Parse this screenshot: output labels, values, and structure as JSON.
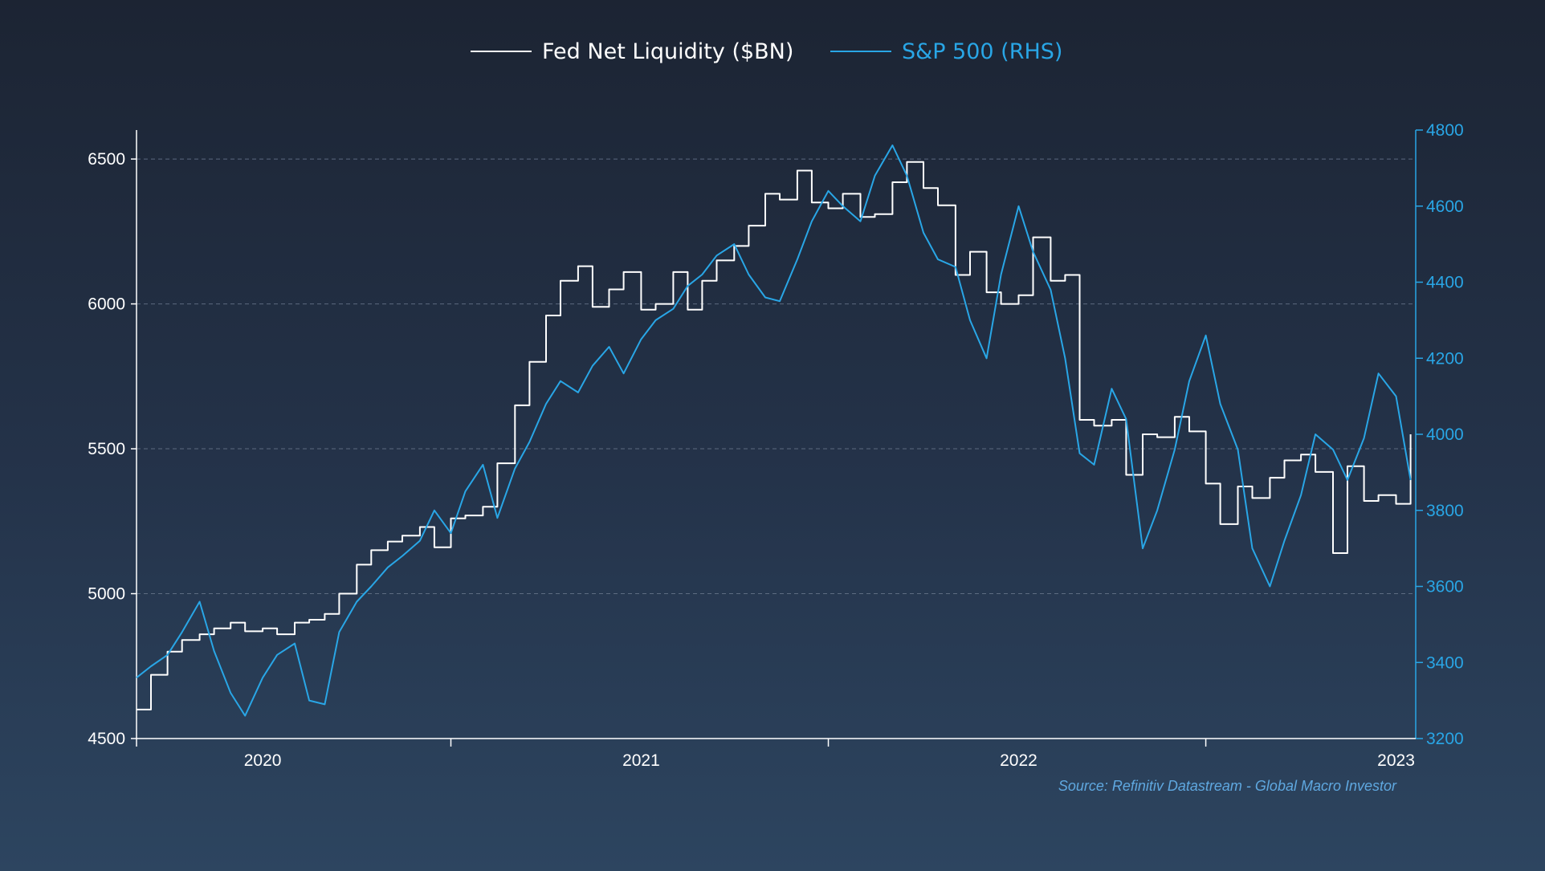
{
  "chart_data": {
    "type": "line",
    "title": "",
    "source": "Source: Refinitiv Datastream - Global Macro Investor",
    "colors": {
      "background_top": "#1c2433",
      "background_bottom": "#2d4560",
      "series_left": "#ffffff",
      "series_right": "#29a6e6",
      "grid": "#6b7a8f"
    },
    "grid": true,
    "legend_position": "top-center",
    "x_axis": {
      "type": "date",
      "range": [
        "2019-09-01",
        "2023-01-20"
      ],
      "labels": [
        {
          "text": "2020",
          "date": "2020-01-01"
        },
        {
          "text": "2021",
          "date": "2021-01-01"
        },
        {
          "text": "2022",
          "date": "2022-01-01"
        },
        {
          "text": "2023",
          "date": "2023-01-01"
        }
      ],
      "tick_marks": [
        "2019-09-01",
        "2020-07-01",
        "2021-07-01",
        "2022-07-01"
      ]
    },
    "y_axis_left": {
      "range": [
        4500,
        6600
      ],
      "ticks": [
        "6500",
        "6000",
        "5500",
        "5000",
        "4500"
      ],
      "gridlines": [
        5000,
        5500,
        6000,
        6500
      ]
    },
    "y_axis_right": {
      "range": [
        3200,
        4800
      ],
      "ticks": [
        "4800",
        "4600",
        "4400",
        "4200",
        "4000",
        "3800",
        "3600",
        "3400",
        "3200"
      ]
    },
    "series": [
      {
        "name": "Fed Net Liquidity ($BN)",
        "axis": "left",
        "style": "step",
        "points": [
          [
            "2019-09-01",
            4600
          ],
          [
            "2019-09-15",
            4720
          ],
          [
            "2019-10-01",
            4800
          ],
          [
            "2019-10-15",
            4840
          ],
          [
            "2019-11-01",
            4860
          ],
          [
            "2019-11-15",
            4880
          ],
          [
            "2019-12-01",
            4900
          ],
          [
            "2019-12-15",
            4870
          ],
          [
            "2020-01-01",
            4880
          ],
          [
            "2020-01-15",
            4860
          ],
          [
            "2020-02-01",
            4900
          ],
          [
            "2020-02-15",
            4910
          ],
          [
            "2020-03-01",
            4930
          ],
          [
            "2020-03-15",
            5000
          ],
          [
            "2020-04-01",
            5100
          ],
          [
            "2020-04-15",
            5150
          ],
          [
            "2020-05-01",
            5180
          ],
          [
            "2020-05-15",
            5200
          ],
          [
            "2020-06-01",
            5230
          ],
          [
            "2020-06-15",
            5160
          ],
          [
            "2020-07-01",
            5260
          ],
          [
            "2020-07-15",
            5270
          ],
          [
            "2020-08-01",
            5300
          ],
          [
            "2020-08-15",
            5450
          ],
          [
            "2020-09-01",
            5650
          ],
          [
            "2020-09-15",
            5800
          ],
          [
            "2020-10-01",
            5960
          ],
          [
            "2020-10-15",
            6080
          ],
          [
            "2020-11-01",
            6130
          ],
          [
            "2020-11-15",
            5990
          ],
          [
            "2020-12-01",
            6050
          ],
          [
            "2020-12-15",
            6110
          ],
          [
            "2021-01-01",
            5980
          ],
          [
            "2021-01-15",
            6000
          ],
          [
            "2021-02-01",
            6110
          ],
          [
            "2021-02-15",
            5980
          ],
          [
            "2021-03-01",
            6080
          ],
          [
            "2021-03-15",
            6150
          ],
          [
            "2021-04-01",
            6200
          ],
          [
            "2021-04-15",
            6270
          ],
          [
            "2021-05-01",
            6380
          ],
          [
            "2021-05-15",
            6360
          ],
          [
            "2021-06-01",
            6460
          ],
          [
            "2021-06-15",
            6350
          ],
          [
            "2021-07-01",
            6330
          ],
          [
            "2021-07-15",
            6380
          ],
          [
            "2021-08-01",
            6300
          ],
          [
            "2021-08-15",
            6310
          ],
          [
            "2021-09-01",
            6420
          ],
          [
            "2021-09-15",
            6490
          ],
          [
            "2021-10-01",
            6400
          ],
          [
            "2021-10-15",
            6340
          ],
          [
            "2021-11-01",
            6100
          ],
          [
            "2021-11-15",
            6180
          ],
          [
            "2021-12-01",
            6040
          ],
          [
            "2021-12-15",
            6000
          ],
          [
            "2022-01-01",
            6030
          ],
          [
            "2022-01-15",
            6230
          ],
          [
            "2022-02-01",
            6080
          ],
          [
            "2022-02-15",
            6100
          ],
          [
            "2022-03-01",
            5600
          ],
          [
            "2022-03-15",
            5580
          ],
          [
            "2022-04-01",
            5600
          ],
          [
            "2022-04-15",
            5410
          ],
          [
            "2022-05-01",
            5550
          ],
          [
            "2022-05-15",
            5540
          ],
          [
            "2022-06-01",
            5610
          ],
          [
            "2022-06-15",
            5560
          ],
          [
            "2022-07-01",
            5380
          ],
          [
            "2022-07-15",
            5240
          ],
          [
            "2022-08-01",
            5370
          ],
          [
            "2022-08-15",
            5330
          ],
          [
            "2022-09-01",
            5400
          ],
          [
            "2022-09-15",
            5460
          ],
          [
            "2022-10-01",
            5480
          ],
          [
            "2022-10-15",
            5420
          ],
          [
            "2022-11-01",
            5140
          ],
          [
            "2022-11-15",
            5440
          ],
          [
            "2022-12-01",
            5320
          ],
          [
            "2022-12-15",
            5340
          ],
          [
            "2023-01-01",
            5310
          ],
          [
            "2023-01-15",
            5550
          ]
        ]
      },
      {
        "name": "S&P 500 (RHS)",
        "axis": "right",
        "style": "line",
        "points": [
          [
            "2019-09-01",
            3360
          ],
          [
            "2019-09-15",
            3390
          ],
          [
            "2019-10-01",
            3420
          ],
          [
            "2019-10-15",
            3480
          ],
          [
            "2019-11-01",
            3560
          ],
          [
            "2019-11-15",
            3430
          ],
          [
            "2019-12-01",
            3320
          ],
          [
            "2019-12-15",
            3260
          ],
          [
            "2020-01-01",
            3360
          ],
          [
            "2020-01-15",
            3420
          ],
          [
            "2020-02-01",
            3450
          ],
          [
            "2020-02-15",
            3300
          ],
          [
            "2020-03-01",
            3290
          ],
          [
            "2020-03-15",
            3480
          ],
          [
            "2020-04-01",
            3560
          ],
          [
            "2020-04-15",
            3600
          ],
          [
            "2020-05-01",
            3650
          ],
          [
            "2020-05-15",
            3680
          ],
          [
            "2020-06-01",
            3720
          ],
          [
            "2020-06-15",
            3800
          ],
          [
            "2020-07-01",
            3740
          ],
          [
            "2020-07-15",
            3850
          ],
          [
            "2020-08-01",
            3920
          ],
          [
            "2020-08-15",
            3780
          ],
          [
            "2020-09-01",
            3910
          ],
          [
            "2020-09-15",
            3980
          ],
          [
            "2020-10-01",
            4080
          ],
          [
            "2020-10-15",
            4140
          ],
          [
            "2020-11-01",
            4110
          ],
          [
            "2020-11-15",
            4180
          ],
          [
            "2020-12-01",
            4230
          ],
          [
            "2020-12-15",
            4160
          ],
          [
            "2021-01-01",
            4250
          ],
          [
            "2021-01-15",
            4300
          ],
          [
            "2021-02-01",
            4330
          ],
          [
            "2021-02-15",
            4390
          ],
          [
            "2021-03-01",
            4420
          ],
          [
            "2021-03-15",
            4470
          ],
          [
            "2021-04-01",
            4500
          ],
          [
            "2021-04-15",
            4420
          ],
          [
            "2021-05-01",
            4360
          ],
          [
            "2021-05-15",
            4350
          ],
          [
            "2021-06-01",
            4460
          ],
          [
            "2021-06-15",
            4560
          ],
          [
            "2021-07-01",
            4640
          ],
          [
            "2021-07-15",
            4600
          ],
          [
            "2021-08-01",
            4560
          ],
          [
            "2021-08-15",
            4680
          ],
          [
            "2021-09-01",
            4760
          ],
          [
            "2021-09-15",
            4680
          ],
          [
            "2021-10-01",
            4530
          ],
          [
            "2021-10-15",
            4460
          ],
          [
            "2021-11-01",
            4440
          ],
          [
            "2021-11-15",
            4300
          ],
          [
            "2021-12-01",
            4200
          ],
          [
            "2021-12-15",
            4420
          ],
          [
            "2022-01-01",
            4600
          ],
          [
            "2022-01-15",
            4480
          ],
          [
            "2022-02-01",
            4380
          ],
          [
            "2022-02-15",
            4200
          ],
          [
            "2022-03-01",
            3950
          ],
          [
            "2022-03-15",
            3920
          ],
          [
            "2022-04-01",
            4120
          ],
          [
            "2022-04-15",
            4040
          ],
          [
            "2022-05-01",
            3700
          ],
          [
            "2022-05-15",
            3800
          ],
          [
            "2022-06-01",
            3960
          ],
          [
            "2022-06-15",
            4140
          ],
          [
            "2022-07-01",
            4260
          ],
          [
            "2022-07-15",
            4080
          ],
          [
            "2022-08-01",
            3960
          ],
          [
            "2022-08-15",
            3700
          ],
          [
            "2022-09-01",
            3600
          ],
          [
            "2022-09-15",
            3720
          ],
          [
            "2022-10-01",
            3840
          ],
          [
            "2022-10-15",
            4000
          ],
          [
            "2022-11-01",
            3960
          ],
          [
            "2022-11-15",
            3880
          ],
          [
            "2022-12-01",
            3990
          ],
          [
            "2022-12-15",
            4160
          ],
          [
            "2023-01-01",
            4100
          ],
          [
            "2023-01-15",
            3880
          ]
        ]
      }
    ]
  }
}
